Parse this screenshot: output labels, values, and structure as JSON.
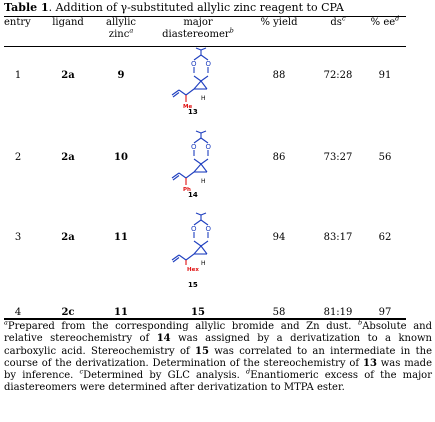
{
  "table": {
    "label": "Table 1",
    "caption": ". Addition of γ-substituted allylic zinc reagent to CPA",
    "headers": {
      "entry": "entry",
      "ligand": "ligand",
      "allylic_1": "allylic",
      "allylic_2": "zinc",
      "allylic_sup": "a",
      "major_1": "major",
      "major_2": "diastereomer",
      "major_sup": "b",
      "yield": "% yield",
      "ds": "ds",
      "ds_sup": "c",
      "ee": "% ee",
      "ee_sup": "d"
    },
    "rows": [
      {
        "entry": "1",
        "ligand": "2a",
        "zinc": "9",
        "product": "13",
        "substituent": "Me",
        "yield": "88",
        "ds": "72:28",
        "ee": "91"
      },
      {
        "entry": "2",
        "ligand": "2a",
        "zinc": "10",
        "product": "14",
        "substituent": "Ph",
        "yield": "86",
        "ds": "73:27",
        "ee": "56"
      },
      {
        "entry": "3",
        "ligand": "2a",
        "zinc": "11",
        "product": "15",
        "substituent": "Hex",
        "yield": "94",
        "ds": "83:17",
        "ee": "62"
      },
      {
        "entry": "4",
        "ligand": "2c",
        "zinc": "11",
        "product": "15",
        "substituent": "",
        "yield": "58",
        "ds": "81:19",
        "ee": "97"
      }
    ],
    "atoms": {
      "oxygen": "O",
      "hydrogen": "H"
    }
  },
  "footnotes": {
    "a_mark": "a",
    "a": "Prepared from the corresponding allylic bromide and Zn dust. ",
    "b_mark": "b",
    "b_1": "Absolute and relative stereochemistry of ",
    "b_c1": "14",
    "b_2": " was assigned by a derivatization to a known carboxylic acid. Stereochemistry of ",
    "b_c2": "15",
    "b_3": " was correlated to an intermediate in the course of the derivatization. Determination of the stereochemistry of ",
    "b_c3": "13",
    "b_4": " was made by inference. ",
    "c_mark": "c",
    "c": "Determined by GLC analysis. ",
    "d_mark": "d",
    "d": "Enantiomeric excess of the major diastereomers were determined after derivatization to MTPA ester."
  }
}
